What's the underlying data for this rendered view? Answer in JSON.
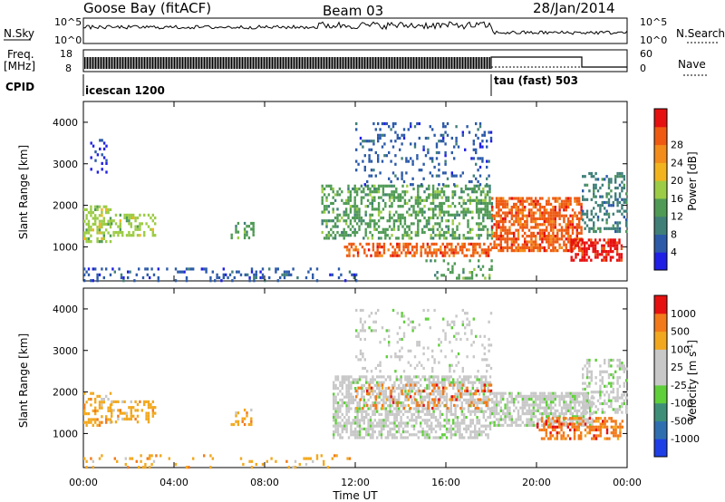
{
  "header": {
    "station": "Goose Bay (fitACF)",
    "beam": "Beam 03",
    "date": "28/Jan/2014"
  },
  "aux": {
    "nsky_label": "N.Sky",
    "freq_label": "Freq.",
    "freq_unit": "[MHz]",
    "cpid_label": "CPID",
    "nsearch_label": "N.Search",
    "nave_label": "Nave",
    "noise_ticks": [
      "10^5",
      "10^0"
    ],
    "freq_ticks": [
      "18",
      "8"
    ],
    "nave_ticks": [
      "60",
      "0"
    ],
    "cpid_segments": [
      {
        "name": "icescan 1200",
        "start_hour": 0
      },
      {
        "name": "tau (fast) 503",
        "start_hour": 18
      }
    ]
  },
  "chart_data": [
    {
      "type": "heatmap",
      "title": "",
      "quantity": "Power",
      "xlabel": "Time UT",
      "ylabel": "Slant Range [km]",
      "xlim": [
        0,
        24
      ],
      "ylim": [
        180,
        4500
      ],
      "xticks": [
        "00:00",
        "04:00",
        "08:00",
        "12:00",
        "16:00",
        "20:00",
        "00:00"
      ],
      "yticks": [
        1000,
        2000,
        3000,
        4000
      ],
      "colorbar": {
        "label": "Power [dB]",
        "ticks": [
          "4",
          "8",
          "12",
          "16",
          "20",
          "24",
          "28"
        ],
        "colors": [
          "#1f1fe6",
          "#2c5aa8",
          "#3f7f78",
          "#4f9a55",
          "#9ccc45",
          "#f2b41e",
          "#f28c1a",
          "#ee5a12",
          "#e61010"
        ]
      },
      "scatter_regions": [
        {
          "t": [
            0.0,
            1.2
          ],
          "r": [
            1100,
            2000
          ],
          "level": 4,
          "density": 0.55
        },
        {
          "t": [
            0.3,
            1.0
          ],
          "r": [
            2800,
            3600
          ],
          "level": 0,
          "density": 0.2
        },
        {
          "t": [
            1.2,
            3.2
          ],
          "r": [
            1300,
            1800
          ],
          "level": 4,
          "density": 0.45
        },
        {
          "t": [
            6.5,
            7.5
          ],
          "r": [
            1200,
            1600
          ],
          "level": 3,
          "density": 0.35
        },
        {
          "t": [
            0.0,
            12.0
          ],
          "r": [
            220,
            500
          ],
          "level": 1,
          "density": 0.2
        },
        {
          "t": [
            10.5,
            18.0
          ],
          "r": [
            1200,
            2500
          ],
          "level": 3,
          "density": 0.45
        },
        {
          "t": [
            11.5,
            18.0
          ],
          "r": [
            800,
            1100
          ],
          "level": 7,
          "density": 0.55
        },
        {
          "t": [
            12.0,
            18.0
          ],
          "r": [
            2500,
            4000
          ],
          "level": 1,
          "density": 0.15
        },
        {
          "t": [
            18.0,
            22.0
          ],
          "r": [
            900,
            2200
          ],
          "level": 7,
          "density": 0.65
        },
        {
          "t": [
            21.5,
            23.8
          ],
          "r": [
            700,
            1200
          ],
          "level": 8,
          "density": 0.65
        },
        {
          "t": [
            22.0,
            24.0
          ],
          "r": [
            1400,
            2800
          ],
          "level": 2,
          "density": 0.35
        },
        {
          "t": [
            15.0,
            18.0
          ],
          "r": [
            220,
            700
          ],
          "level": 3,
          "density": 0.2
        }
      ]
    },
    {
      "type": "heatmap",
      "title": "",
      "quantity": "Velocity",
      "xlabel": "Time UT",
      "ylabel": "Slant Range [km]",
      "xlim": [
        0,
        24
      ],
      "ylim": [
        180,
        4500
      ],
      "xticks": [
        "00:00",
        "04:00",
        "08:00",
        "12:00",
        "16:00",
        "20:00",
        "00:00"
      ],
      "yticks": [
        1000,
        2000,
        3000,
        4000
      ],
      "colorbar": {
        "label": "Velocity [m s",
        "label_sup": "-1",
        "label_end": "]",
        "ticks": [
          "1000",
          "500",
          "100",
          "25",
          "-25",
          "-100",
          "-500",
          "-1000"
        ],
        "colors": [
          "#1f3fe6",
          "#2f6fb0",
          "#3f8f78",
          "#5fcf3a",
          "#c8c8c8",
          "#c8c8c8",
          "#f2a81e",
          "#f27a1a",
          "#e61010"
        ]
      },
      "scatter_regions": [
        {
          "t": [
            0.0,
            1.2
          ],
          "r": [
            1200,
            2000
          ],
          "level": 6,
          "density": 0.45
        },
        {
          "t": [
            1.2,
            3.2
          ],
          "r": [
            1300,
            1800
          ],
          "level": 6,
          "density": 0.4
        },
        {
          "t": [
            6.5,
            7.5
          ],
          "r": [
            1200,
            1600
          ],
          "level": 6,
          "density": 0.35
        },
        {
          "t": [
            0.0,
            12.0
          ],
          "r": [
            220,
            500
          ],
          "level": 6,
          "density": 0.12
        },
        {
          "t": [
            11.0,
            18.0
          ],
          "r": [
            900,
            2400
          ],
          "level": 4,
          "density": 0.6
        },
        {
          "t": [
            12.0,
            18.0
          ],
          "r": [
            1600,
            2200
          ],
          "level": 7,
          "density": 0.2
        },
        {
          "t": [
            18.0,
            22.5
          ],
          "r": [
            1200,
            2000
          ],
          "level": 4,
          "density": 0.7
        },
        {
          "t": [
            20.0,
            23.8
          ],
          "r": [
            900,
            1400
          ],
          "level": 7,
          "density": 0.5
        },
        {
          "t": [
            22.0,
            24.0
          ],
          "r": [
            1500,
            2800
          ],
          "level": 4,
          "density": 0.4
        },
        {
          "t": [
            12.0,
            18.0
          ],
          "r": [
            2500,
            4000
          ],
          "level": 4,
          "density": 0.12
        }
      ]
    }
  ]
}
